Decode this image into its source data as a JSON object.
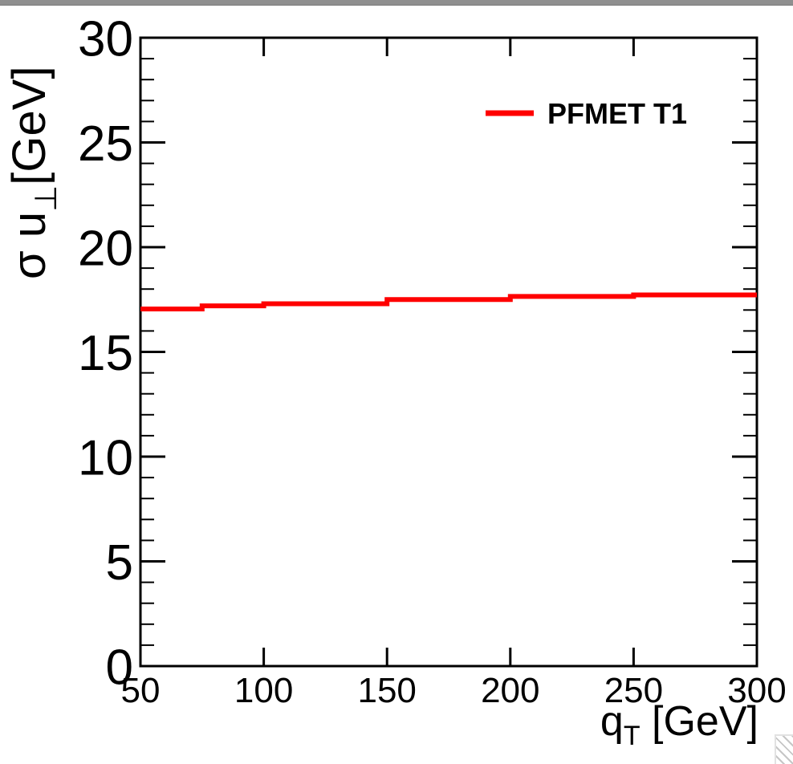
{
  "window": {
    "top_bar_color": "#8f8f8f",
    "background": "#ffffff",
    "has_resize_grip": true
  },
  "colors": {
    "axis": "#000000",
    "series_red": "#ff0000",
    "background": "#ffffff"
  },
  "chart_data": {
    "type": "line",
    "draw_style": "step-histogram",
    "title": "",
    "xlabel": "q_T [GeV]",
    "ylabel": "σ u⊥ [GeV]",
    "xlabel_parts": {
      "main": "q",
      "sub": "T",
      "rest": " [GeV]"
    },
    "ylabel_parts": {
      "main": "σ u",
      "sub": "⊥",
      "rest": "[GeV]"
    },
    "xlim": [
      50,
      300
    ],
    "ylim": [
      0,
      30
    ],
    "x_major_ticks": [
      50,
      100,
      150,
      200,
      250,
      300
    ],
    "x_tick_labels": [
      "50",
      "100",
      "150",
      "200",
      "250",
      "300"
    ],
    "y_major_ticks": [
      0,
      5,
      10,
      15,
      20,
      25,
      30
    ],
    "y_tick_labels": [
      "0",
      "5",
      "10",
      "15",
      "20",
      "25",
      "30"
    ],
    "y_minor_step": 1,
    "x_minor_step": 0,
    "grid": false,
    "legend": {
      "position": "top-right",
      "items": [
        {
          "label": "PFMET T1",
          "color": "#ff0000"
        }
      ]
    },
    "series": [
      {
        "name": "PFMET T1",
        "color": "#ff0000",
        "line_width": 6,
        "bin_edges": [
          50,
          75,
          100,
          150,
          200,
          250,
          300
        ],
        "values": [
          17.05,
          17.2,
          17.3,
          17.5,
          17.65,
          17.72
        ]
      }
    ]
  }
}
